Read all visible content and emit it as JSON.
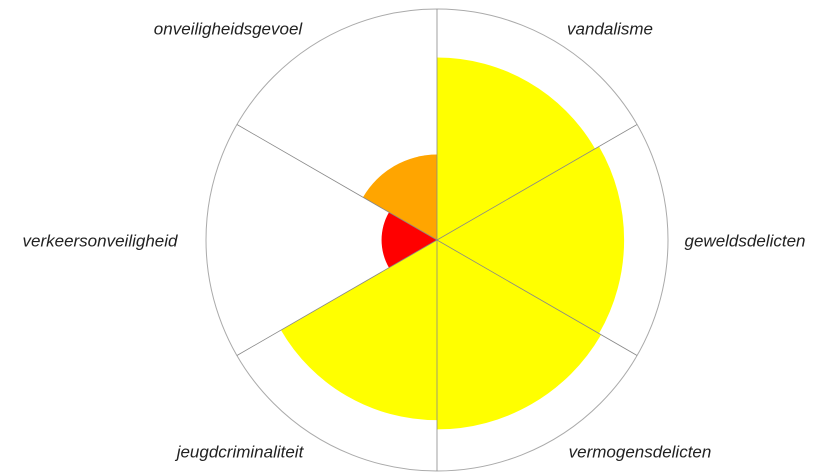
{
  "chart_data": {
    "type": "polar-area",
    "categories": [
      "vandalisme",
      "geweldsdelicten",
      "vermogensdelicten",
      "jeugdcriminaliteit",
      "verkeersonveiligheid",
      "onveiligheidsgevoel"
    ],
    "values": [
      79,
      81,
      82,
      78,
      24,
      37
    ],
    "colors": [
      "#ffff00",
      "#ffff00",
      "#ffff00",
      "#ffff00",
      "#ff0000",
      "#ffa500"
    ],
    "rlim": [
      0,
      100
    ]
  }
}
